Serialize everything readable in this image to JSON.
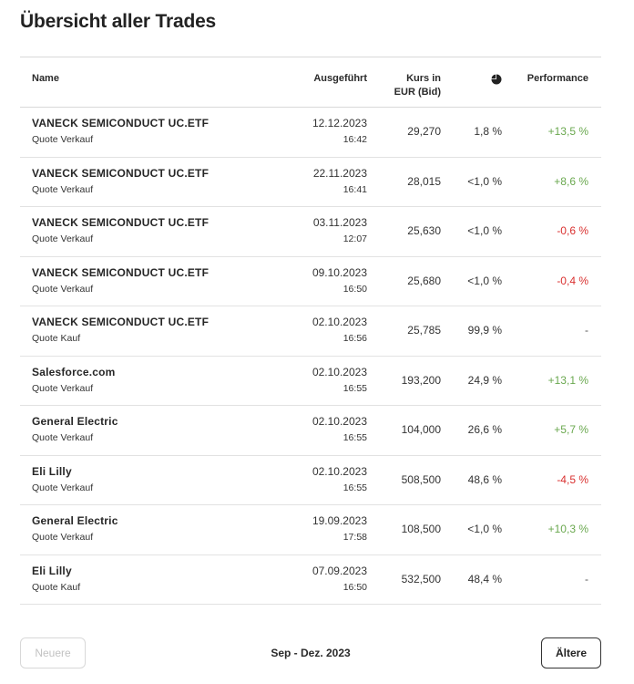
{
  "page": {
    "title": "Übersicht aller Trades"
  },
  "table": {
    "headers": {
      "name": "Name",
      "executed": "Ausgeführt",
      "price_line1": "Kurs in",
      "price_line2": "EUR (Bid)",
      "share_icon": "pie-chart-icon",
      "performance": "Performance"
    },
    "rows": [
      {
        "name": "VANECK SEMICONDUCT UC.ETF",
        "type": "Quote Verkauf",
        "date": "12.12.2023",
        "time": "16:42",
        "price": "29,270",
        "share": "1,8 %",
        "performance": "+13,5 %",
        "trend": "pos"
      },
      {
        "name": "VANECK SEMICONDUCT UC.ETF",
        "type": "Quote Verkauf",
        "date": "22.11.2023",
        "time": "16:41",
        "price": "28,015",
        "share": "<1,0 %",
        "performance": "+8,6 %",
        "trend": "pos"
      },
      {
        "name": "VANECK SEMICONDUCT UC.ETF",
        "type": "Quote Verkauf",
        "date": "03.11.2023",
        "time": "12:07",
        "price": "25,630",
        "share": "<1,0 %",
        "performance": "-0,6 %",
        "trend": "neg"
      },
      {
        "name": "VANECK SEMICONDUCT UC.ETF",
        "type": "Quote Verkauf",
        "date": "09.10.2023",
        "time": "16:50",
        "price": "25,680",
        "share": "<1,0 %",
        "performance": "-0,4 %",
        "trend": "neg"
      },
      {
        "name": "VANECK SEMICONDUCT UC.ETF",
        "type": "Quote Kauf",
        "date": "02.10.2023",
        "time": "16:56",
        "price": "25,785",
        "share": "99,9 %",
        "performance": "-",
        "trend": "none"
      },
      {
        "name": "Salesforce.com",
        "type": "Quote Verkauf",
        "date": "02.10.2023",
        "time": "16:55",
        "price": "193,200",
        "share": "24,9 %",
        "performance": "+13,1 %",
        "trend": "pos"
      },
      {
        "name": "General Electric",
        "type": "Quote Verkauf",
        "date": "02.10.2023",
        "time": "16:55",
        "price": "104,000",
        "share": "26,6 %",
        "performance": "+5,7 %",
        "trend": "pos"
      },
      {
        "name": "Eli Lilly",
        "type": "Quote Verkauf",
        "date": "02.10.2023",
        "time": "16:55",
        "price": "508,500",
        "share": "48,6 %",
        "performance": "-4,5 %",
        "trend": "neg"
      },
      {
        "name": "General Electric",
        "type": "Quote Verkauf",
        "date": "19.09.2023",
        "time": "17:58",
        "price": "108,500",
        "share": "<1,0 %",
        "performance": "+10,3 %",
        "trend": "pos"
      },
      {
        "name": "Eli Lilly",
        "type": "Quote Kauf",
        "date": "07.09.2023",
        "time": "16:50",
        "price": "532,500",
        "share": "48,4 %",
        "performance": "-",
        "trend": "none"
      }
    ]
  },
  "pagination": {
    "newer_label": "Neuere",
    "range_label": "Sep - Dez. 2023",
    "older_label": "Ältere"
  },
  "colors": {
    "positive": "#6aa84f",
    "negative": "#d9302f",
    "neutral": "#555555"
  }
}
